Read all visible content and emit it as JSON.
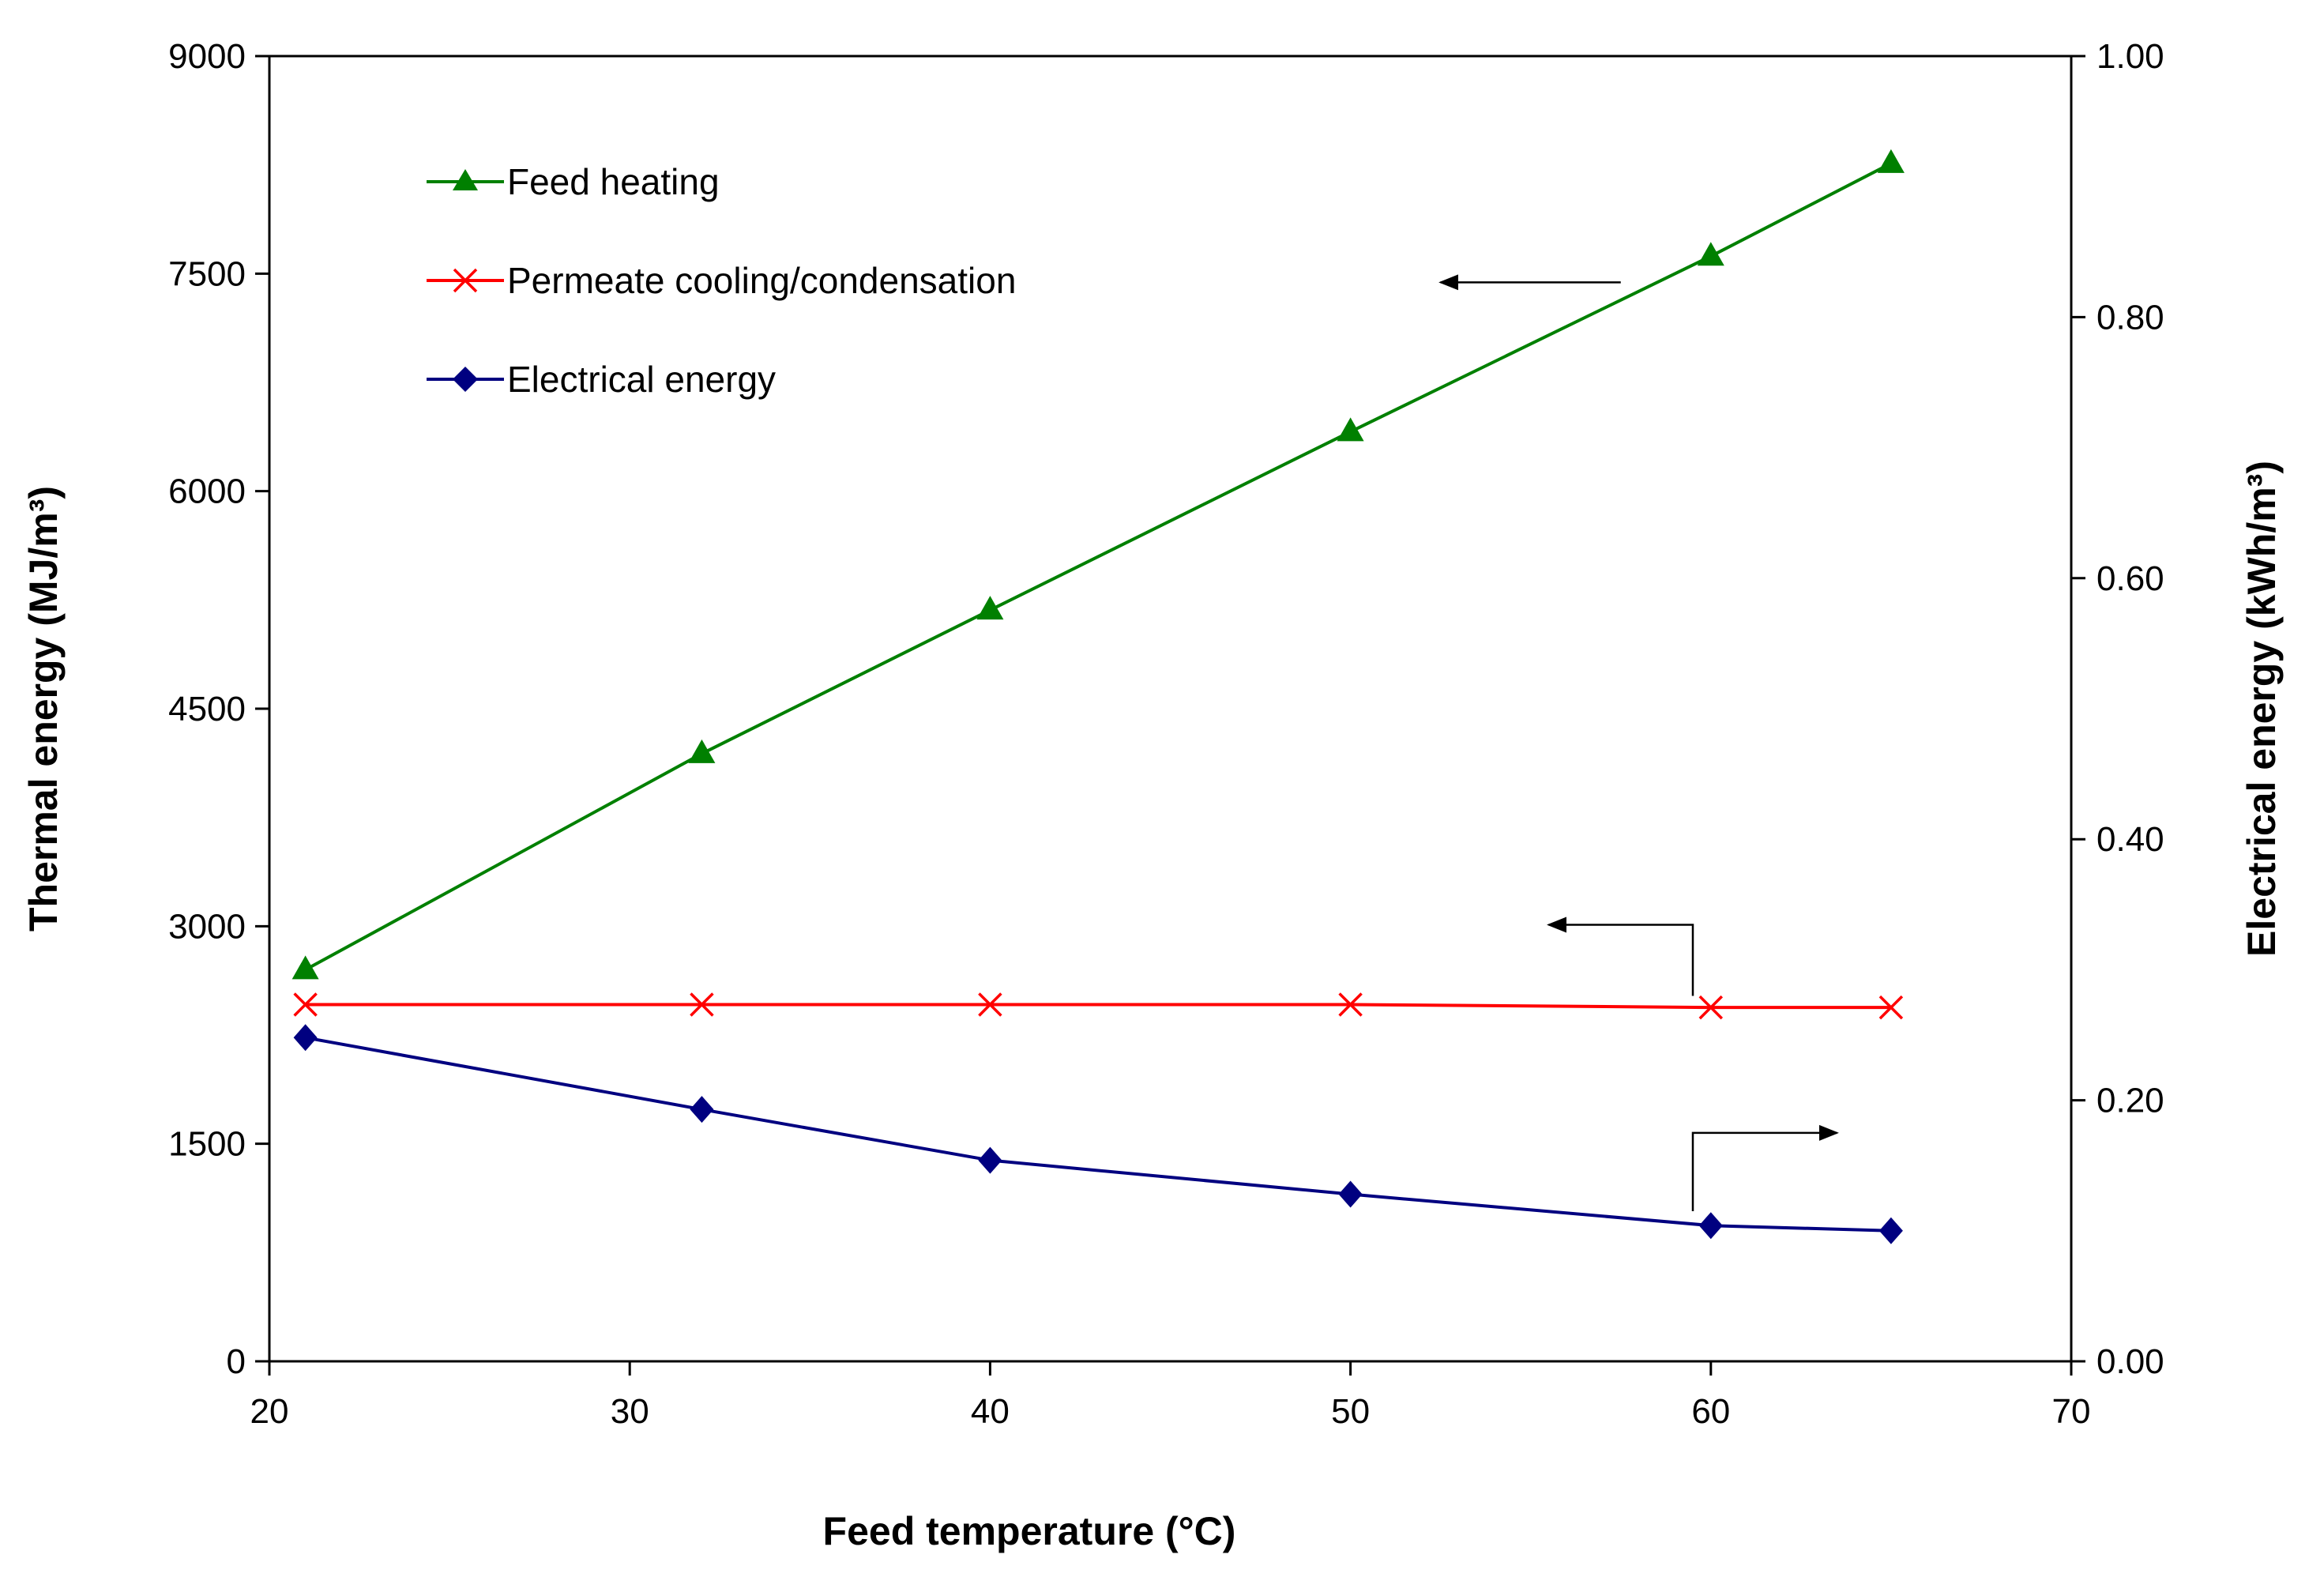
{
  "chart_data": {
    "type": "line",
    "title": "",
    "xlabel": "Feed temperature (°C)",
    "ylabel_left": "Thermal energy (MJ/m³)",
    "ylabel_right": "Electrical energy (kWh/m³)",
    "xlim": [
      20,
      70
    ],
    "ylim_left": [
      0,
      9000
    ],
    "ylim_right": [
      0,
      1.0
    ],
    "grid": false,
    "legend_position": "top-left",
    "x_ticks": [
      "20",
      "30",
      "40",
      "50",
      "60",
      "70"
    ],
    "y_left_ticks": [
      "0",
      "1500",
      "3000",
      "4500",
      "6000",
      "7500",
      "9000"
    ],
    "y_right_ticks": [
      "0.00",
      "0.20",
      "0.40",
      "0.60",
      "0.80",
      "1.00"
    ],
    "x": [
      21,
      32,
      40,
      50,
      60,
      65
    ],
    "series": [
      {
        "name": "Feed heating",
        "axis": "left",
        "color": "#008000",
        "marker": "triangle",
        "values": [
          2700,
          4190,
          5180,
          6410,
          7620,
          8260
        ]
      },
      {
        "name": "Permeate cooling/condensation",
        "axis": "left",
        "color": "#ff0000",
        "marker": "x",
        "values": [
          2460,
          2460,
          2460,
          2460,
          2440,
          2440
        ]
      },
      {
        "name": "Electrical energy",
        "axis": "right",
        "color": "#000080",
        "marker": "diamond",
        "values": [
          0.248,
          0.193,
          0.154,
          0.128,
          0.104,
          0.1
        ]
      }
    ],
    "annotations": [
      {
        "name": "feed-heating-left-axis-arrow",
        "points": [
          [
            57.5,
            7440
          ],
          [
            52.5,
            7440
          ]
        ]
      },
      {
        "name": "permeate-left-axis-arrow",
        "points": [
          [
            59.5,
            2520
          ],
          [
            59.5,
            3010
          ],
          [
            55.5,
            3010
          ]
        ]
      },
      {
        "name": "electrical-right-axis-arrow",
        "points": [
          [
            59.5,
            0.115
          ],
          [
            59.5,
            0.175
          ],
          [
            63.5,
            0.175
          ]
        ]
      }
    ]
  }
}
